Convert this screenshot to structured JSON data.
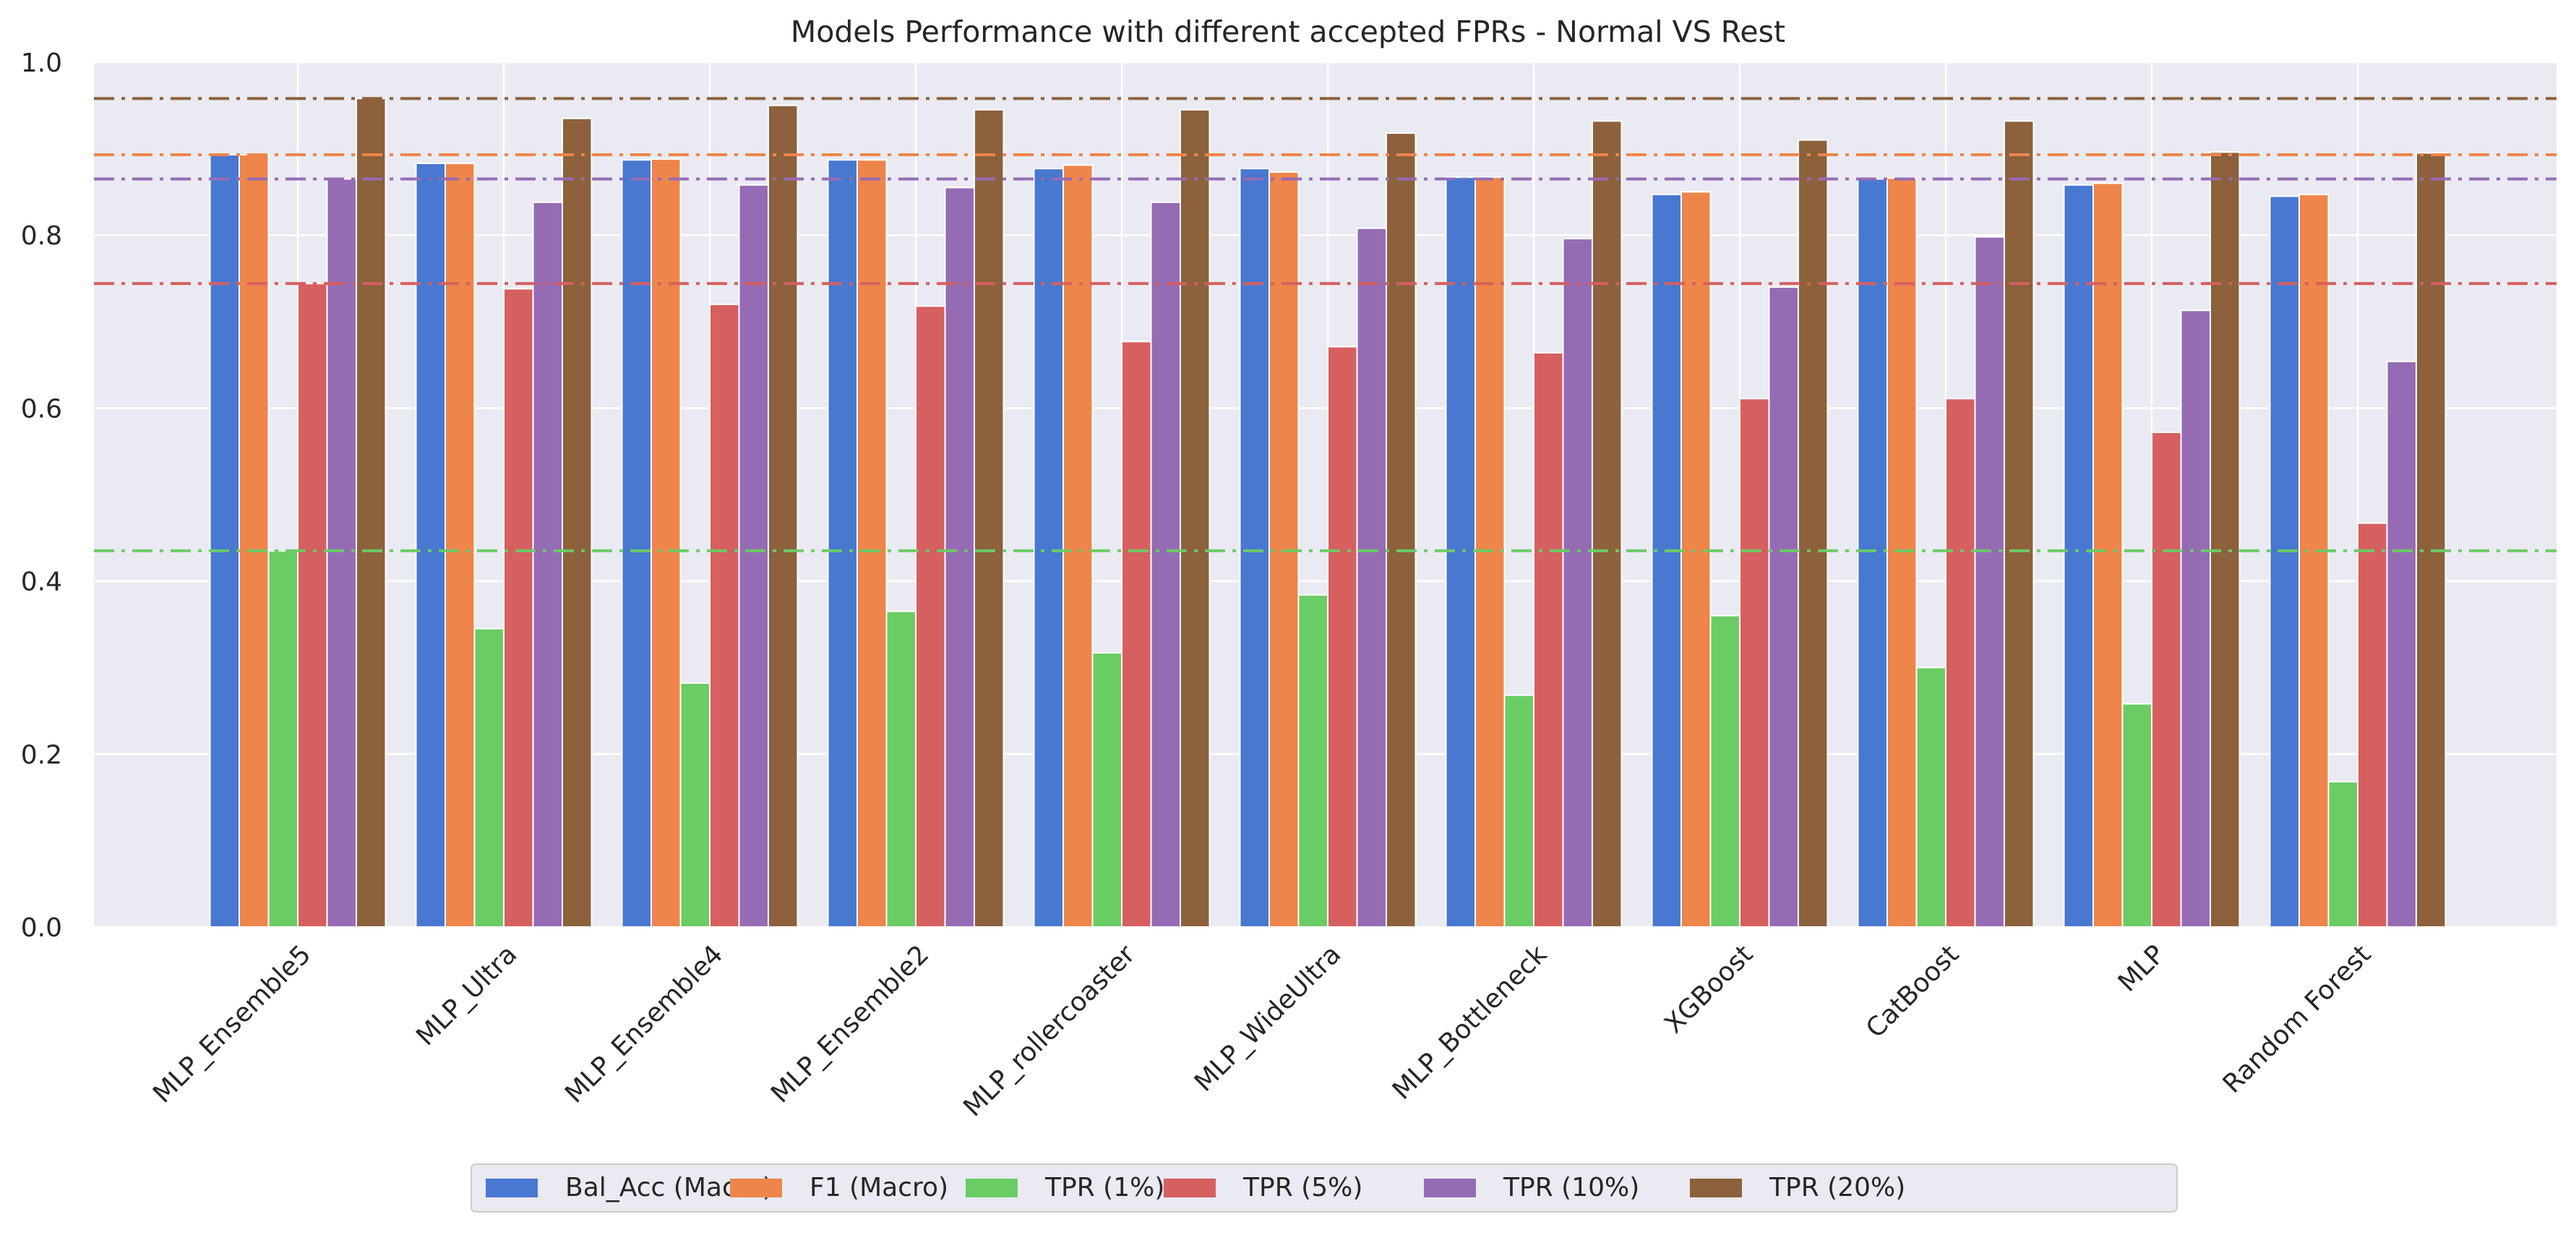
{
  "chart_data": {
    "type": "bar",
    "title": "Models Performance with different accepted FPRs - Normal VS Rest",
    "xlabel": "",
    "ylabel": "",
    "ylim": [
      0.0,
      1.0
    ],
    "yticks": [
      "0.0",
      "0.2",
      "0.4",
      "0.6",
      "0.8",
      "1.0"
    ],
    "grid": true,
    "legend_position": "bottom-center",
    "categories": [
      "MLP_Ensemble5",
      "MLP_Ultra",
      "MLP_Ensemble4",
      "MLP_Ensemble2",
      "MLP_rollercoaster",
      "MLP_WideUltra",
      "MLP_Bottleneck",
      "XGBoost",
      "CatBoost",
      "MLP",
      "Random Forest"
    ],
    "series": [
      {
        "name": "Bal_Acc (Macro)",
        "color": "#4878d0",
        "values": [
          0.893,
          0.883,
          0.887,
          0.887,
          0.877,
          0.877,
          0.867,
          0.847,
          0.865,
          0.858,
          0.845
        ]
      },
      {
        "name": "F1 (Macro)",
        "color": "#ee854a",
        "values": [
          0.893,
          0.883,
          0.888,
          0.887,
          0.881,
          0.873,
          0.867,
          0.85,
          0.866,
          0.86,
          0.847
        ]
      },
      {
        "name": "TPR (1%)",
        "color": "#6acc64",
        "values": [
          0.435,
          0.345,
          0.282,
          0.365,
          0.317,
          0.384,
          0.268,
          0.36,
          0.3,
          0.258,
          0.168
        ]
      },
      {
        "name": "TPR (5%)",
        "color": "#d65f5f",
        "values": [
          0.744,
          0.738,
          0.72,
          0.718,
          0.677,
          0.671,
          0.664,
          0.611,
          0.611,
          0.572,
          0.467
        ]
      },
      {
        "name": "TPR (10%)",
        "color": "#956cb4",
        "values": [
          0.865,
          0.838,
          0.858,
          0.855,
          0.838,
          0.808,
          0.796,
          0.74,
          0.798,
          0.713,
          0.654
        ]
      },
      {
        "name": "TPR (20%)",
        "color": "#8c613c",
        "values": [
          0.958,
          0.935,
          0.95,
          0.945,
          0.945,
          0.918,
          0.932,
          0.91,
          0.932,
          0.896,
          0.895
        ]
      }
    ],
    "reference_lines": [
      {
        "value": 0.958,
        "color": "#8c613c",
        "style": "dash-dot"
      },
      {
        "value": 0.893,
        "color": "#4878d0",
        "style": "dash-dot"
      },
      {
        "value": 0.893,
        "color": "#ee854a",
        "style": "dash-dot"
      },
      {
        "value": 0.865,
        "color": "#956cb4",
        "style": "dash-dot"
      },
      {
        "value": 0.744,
        "color": "#d65f5f",
        "style": "dash-dot"
      },
      {
        "value": 0.435,
        "color": "#6acc64",
        "style": "dash-dot"
      }
    ],
    "style": {
      "plot_background": "#eaeaf2",
      "grid_color": "#ffffff",
      "text_color": "#262626"
    }
  }
}
